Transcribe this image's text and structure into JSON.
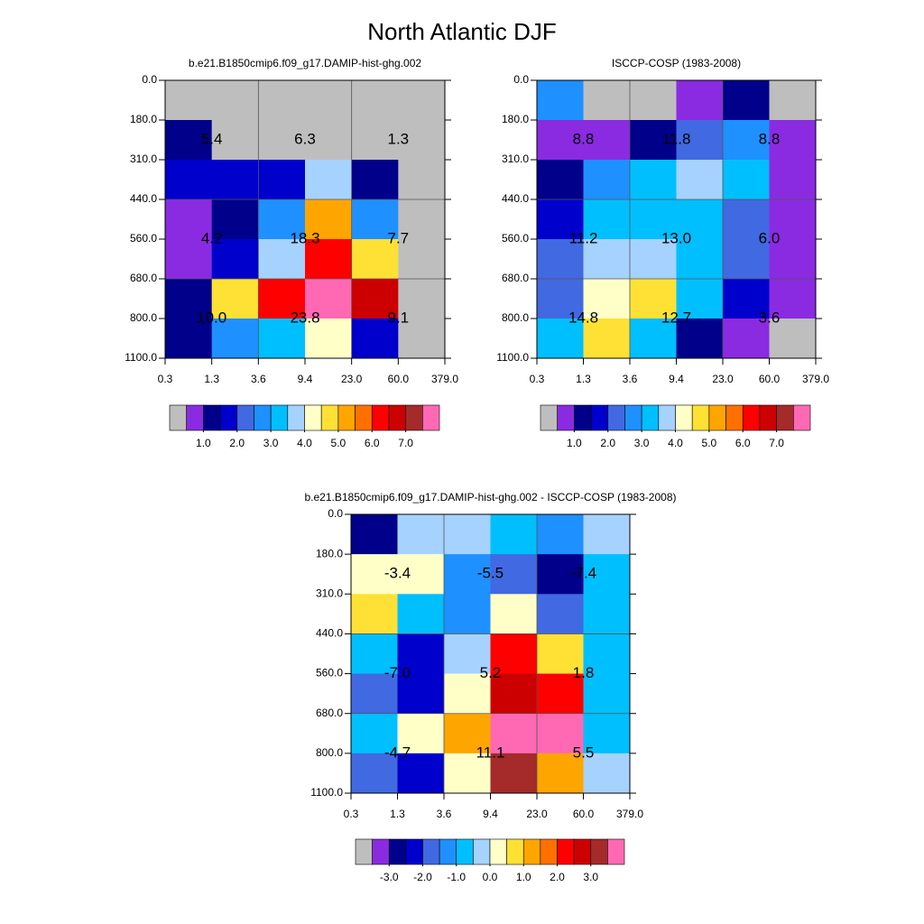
{
  "title": "North Atlantic DJF",
  "chart_data": [
    {
      "type": "heatmap",
      "title": "b.e21.B1850cmip6.f09_g17.DAMIP-hist-ghg.002",
      "xticks": [
        0.3,
        1.3,
        3.6,
        9.4,
        {
          "value": 23,
          "label": "23.0"
        },
        {
          "value": 60,
          "label": "60.0"
        },
        {
          "value": 379,
          "label": "379.0"
        }
      ],
      "yticks": [
        {
          "value": 0,
          "label": "0.0"
        },
        {
          "value": 180,
          "label": "180.0"
        },
        {
          "value": 310,
          "label": "310.0"
        },
        {
          "value": 440,
          "label": "440.0"
        },
        {
          "value": 560,
          "label": "560.0"
        },
        {
          "value": 680,
          "label": "680.0"
        },
        {
          "value": 800,
          "label": "800.0"
        },
        {
          "value": 1100,
          "label": "1100.0"
        }
      ],
      "z": [
        [
          0.25,
          0.25,
          0.25,
          0.25,
          0.25,
          0.25
        ],
        [
          1.25,
          0.25,
          0.25,
          0.25,
          0.25,
          0.25
        ],
        [
          1.75,
          1.75,
          1.75,
          3.75,
          1.25,
          0.25
        ],
        [
          0.75,
          1.25,
          2.75,
          5.25,
          2.75,
          0.25
        ],
        [
          0.75,
          1.75,
          3.75,
          6.25,
          4.75,
          0.25
        ],
        [
          1.25,
          4.75,
          6.25,
          7.75,
          6.75,
          0.25
        ],
        [
          1.25,
          2.75,
          3.25,
          4.25,
          1.75,
          0.25
        ]
      ],
      "levels": [
        0.5,
        1,
        1.5,
        2,
        2.5,
        3,
        3.5,
        4,
        4.5,
        5,
        5.5,
        6,
        6.5,
        7,
        7.5
      ],
      "colors": [
        "#bebebe",
        "#8a2be2",
        "#00008b",
        "#0000cd",
        "#4169e1",
        "#1e90ff",
        "#00bfff",
        "#a6d2ff",
        "#ffffc8",
        "#ffe135",
        "#ffa500",
        "#ff7000",
        "#ff0000",
        "#cd0000",
        "#a52a2a",
        "#ff69b4"
      ],
      "colorbar_ticks": [
        {
          "value": 1,
          "label": "1.0"
        },
        {
          "value": 2,
          "label": "2.0"
        },
        {
          "value": 3,
          "label": "3.0"
        },
        {
          "value": 4,
          "label": "4.0"
        },
        {
          "value": 5,
          "label": "5.0"
        },
        {
          "value": 6,
          "label": "6.0"
        },
        {
          "value": 7,
          "label": "7.0"
        }
      ],
      "annotations": [
        [
          5.4,
          6.3,
          1.3
        ],
        [
          4.2,
          18.3,
          7.7
        ],
        [
          {
            "value": 10,
            "label": "10.0"
          },
          23.8,
          9.1
        ]
      ]
    },
    {
      "type": "heatmap",
      "title": "ISCCP-COSP (1983-2008)",
      "xticks": [
        0.3,
        1.3,
        3.6,
        9.4,
        {
          "value": 23,
          "label": "23.0"
        },
        {
          "value": 60,
          "label": "60.0"
        },
        {
          "value": 379,
          "label": "379.0"
        }
      ],
      "yticks": [
        {
          "value": 0,
          "label": "0.0"
        },
        {
          "value": 180,
          "label": "180.0"
        },
        {
          "value": 310,
          "label": "310.0"
        },
        {
          "value": 440,
          "label": "440.0"
        },
        {
          "value": 560,
          "label": "560.0"
        },
        {
          "value": 680,
          "label": "680.0"
        },
        {
          "value": 800,
          "label": "800.0"
        },
        {
          "value": 1100,
          "label": "1100.0"
        }
      ],
      "z": [
        [
          2.75,
          0.25,
          0.25,
          0.75,
          1.25,
          0.25
        ],
        [
          0.75,
          0.75,
          1.25,
          2.25,
          2.75,
          0.75
        ],
        [
          1.25,
          2.75,
          3.25,
          3.75,
          3.25,
          0.75
        ],
        [
          1.75,
          3.25,
          3.25,
          3.25,
          2.25,
          0.75
        ],
        [
          2.25,
          3.75,
          3.75,
          3.25,
          2.25,
          0.75
        ],
        [
          2.25,
          4.25,
          4.75,
          3.25,
          1.75,
          0.75
        ],
        [
          3.25,
          4.75,
          3.25,
          1.25,
          0.75,
          0.25
        ]
      ],
      "levels": [
        0.5,
        1,
        1.5,
        2,
        2.5,
        3,
        3.5,
        4,
        4.5,
        5,
        5.5,
        6,
        6.5,
        7,
        7.5
      ],
      "colors": [
        "#bebebe",
        "#8a2be2",
        "#00008b",
        "#0000cd",
        "#4169e1",
        "#1e90ff",
        "#00bfff",
        "#a6d2ff",
        "#ffffc8",
        "#ffe135",
        "#ffa500",
        "#ff7000",
        "#ff0000",
        "#cd0000",
        "#a52a2a",
        "#ff69b4"
      ],
      "colorbar_ticks": [
        {
          "value": 1,
          "label": "1.0"
        },
        {
          "value": 2,
          "label": "2.0"
        },
        {
          "value": 3,
          "label": "3.0"
        },
        {
          "value": 4,
          "label": "4.0"
        },
        {
          "value": 5,
          "label": "5.0"
        },
        {
          "value": 6,
          "label": "6.0"
        },
        {
          "value": 7,
          "label": "7.0"
        }
      ],
      "annotations": [
        [
          8.8,
          11.8,
          8.8
        ],
        [
          11.2,
          {
            "value": 13,
            "label": "13.0"
          },
          {
            "value": 6,
            "label": "6.0"
          }
        ],
        [
          14.8,
          12.7,
          3.6
        ]
      ]
    },
    {
      "type": "heatmap",
      "title": "b.e21.B1850cmip6.f09_g17.DAMIP-hist-ghg.002 - ISCCP-COSP (1983-2008)",
      "xticks": [
        0.3,
        1.3,
        3.6,
        9.4,
        {
          "value": 23,
          "label": "23.0"
        },
        {
          "value": 60,
          "label": "60.0"
        },
        {
          "value": 379,
          "label": "379.0"
        }
      ],
      "yticks": [
        {
          "value": 0,
          "label": "0.0"
        },
        {
          "value": 180,
          "label": "180.0"
        },
        {
          "value": 310,
          "label": "310.0"
        },
        {
          "value": 440,
          "label": "440.0"
        },
        {
          "value": 560,
          "label": "560.0"
        },
        {
          "value": 680,
          "label": "680.0"
        },
        {
          "value": 800,
          "label": "800.0"
        },
        {
          "value": 1100,
          "label": "1100.0"
        }
      ],
      "z": [
        [
          -2.75,
          -0.25,
          -0.25,
          -0.75,
          -1.25,
          -0.25
        ],
        [
          0.25,
          0.25,
          -1.25,
          -1.75,
          -2.75,
          -0.75
        ],
        [
          0.75,
          -0.75,
          -1.25,
          0.25,
          -1.75,
          -0.75
        ],
        [
          -0.75,
          -2.25,
          -0.25,
          2.25,
          0.75,
          -0.75
        ],
        [
          -1.75,
          -2.25,
          0.25,
          2.75,
          2.25,
          -0.75
        ],
        [
          -0.75,
          0.25,
          1.25,
          3.75,
          3.75,
          -0.75
        ],
        [
          -1.75,
          -2.25,
          0.25,
          3.25,
          1.25,
          -0.25
        ]
      ],
      "levels": [
        -3.5,
        -3,
        -2.5,
        -2,
        -1.5,
        -1,
        -0.5,
        0,
        0.5,
        1,
        1.5,
        2,
        2.5,
        3,
        3.5
      ],
      "colors": [
        "#bebebe",
        "#8a2be2",
        "#00008b",
        "#0000cd",
        "#4169e1",
        "#1e90ff",
        "#00bfff",
        "#a6d2ff",
        "#ffffc8",
        "#ffe135",
        "#ffa500",
        "#ff7000",
        "#ff0000",
        "#cd0000",
        "#a52a2a",
        "#ff69b4"
      ],
      "colorbar_ticks": [
        {
          "value": -3,
          "label": "-3.0"
        },
        {
          "value": -2,
          "label": "-2.0"
        },
        {
          "value": -1,
          "label": "-1.0"
        },
        {
          "value": 0,
          "label": "0.0"
        },
        {
          "value": 1,
          "label": "1.0"
        },
        {
          "value": 2,
          "label": "2.0"
        },
        {
          "value": 3,
          "label": "3.0"
        }
      ],
      "annotations": [
        [
          -3.4,
          -5.5,
          -7.4
        ],
        [
          {
            "value": -7,
            "label": "-7.0"
          },
          5.2,
          1.8
        ],
        [
          -4.7,
          11.1,
          5.5
        ]
      ]
    }
  ]
}
